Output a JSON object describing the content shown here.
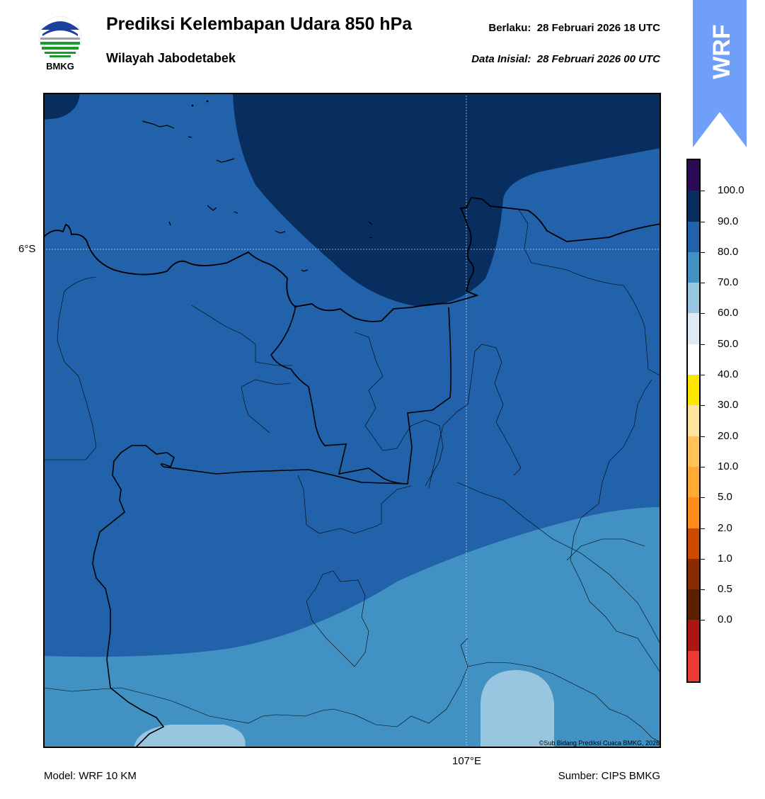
{
  "header": {
    "title": "Prediksi Kelembapan Udara 850 hPa",
    "subtitle": "Wilayah Jabodetabek",
    "valid_label": "Berlaku:",
    "valid_time": "28 Februari 2026 18 UTC",
    "init_label": "Data Inisial:",
    "init_time": "28 Februari 2026 00 UTC"
  },
  "logo": {
    "text": "BMKG",
    "icon": "bmkg-logo"
  },
  "badge": {
    "text": "WRF",
    "color": "#6f9ff8"
  },
  "map": {
    "lat_label": "6°S",
    "lon_label": "107°E",
    "copyright": "©Sub Bidang Prediksi Cuaca BMKG, 2026"
  },
  "footer": {
    "model": "Model: WRF 10 KM",
    "source": "Sumber: CIPS BMKG"
  },
  "legend": {
    "labels": [
      "100.0",
      "90.0",
      "80.0",
      "70.0",
      "60.0",
      "50.0",
      "40.0",
      "30.0",
      "20.0",
      "10.0",
      "5.0",
      "2.0",
      "1.0",
      "0.5",
      "0.0"
    ],
    "colors": [
      "#2a0a55",
      "#082e60",
      "#2162aa",
      "#4191c3",
      "#98c6e0",
      "#dfeaf5",
      "#ffffff",
      "#ffe600",
      "#ffe4a0",
      "#ffc35a",
      "#ffaa37",
      "#ff8c1a",
      "#cc4a00",
      "#8a2b00",
      "#5a2000",
      "#b01515",
      "#ee3a33"
    ]
  }
}
